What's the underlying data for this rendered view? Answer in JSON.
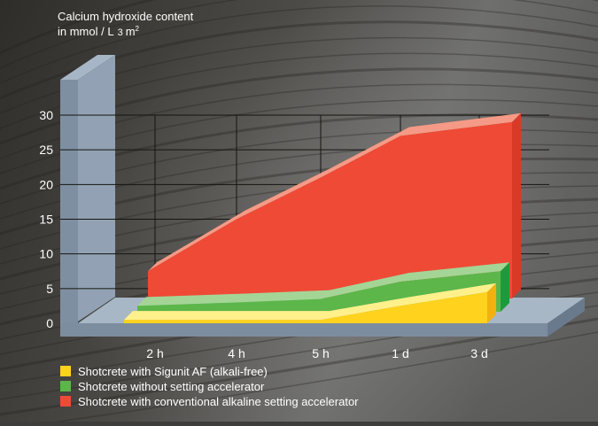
{
  "chart_data": {
    "type": "area",
    "title_line1": "Calcium hydroxide content",
    "title_line2_prefix": "in mmol / L",
    "title_line2_mid": "3",
    "title_line2_unit": "m",
    "title_line2_sup": "2",
    "ylim": [
      0,
      30
    ],
    "yticks": [
      "0",
      "5",
      "10",
      "15",
      "20",
      "25",
      "30"
    ],
    "categories": [
      "2 h",
      "4 h",
      "5 h",
      "1 d",
      "3 d"
    ],
    "grid": true,
    "legend_position": "bottom-left",
    "series": [
      {
        "name": "Shotcrete with conventional alkaline setting accelerator",
        "values": [
          7.5,
          15,
          21,
          27,
          29
        ]
      },
      {
        "name": "Shotcrete without setting accelerator",
        "values": [
          2.5,
          3,
          3.5,
          6,
          7.5
        ]
      },
      {
        "name": "Shotcrete with Sigunit AF (alkali-free)",
        "values": [
          0.5,
          0.5,
          0.5,
          2.5,
          4.5
        ]
      }
    ],
    "colors": {
      "red": "#ef4a36",
      "red_top": "#f59a86",
      "green": "#5cb64a",
      "green_top": "#a4d596",
      "green_side": "#1e9a3c",
      "yellow": "#ffd21e",
      "yellow_top": "#fff08c",
      "yellow_side": "#f2b10f",
      "axis_wall": "#7f8fa2",
      "axis_wall_top": "#a7b6c6",
      "base_top": "#a8b7c6",
      "base_front": "#7d8da0",
      "text": "#ffffff"
    }
  }
}
